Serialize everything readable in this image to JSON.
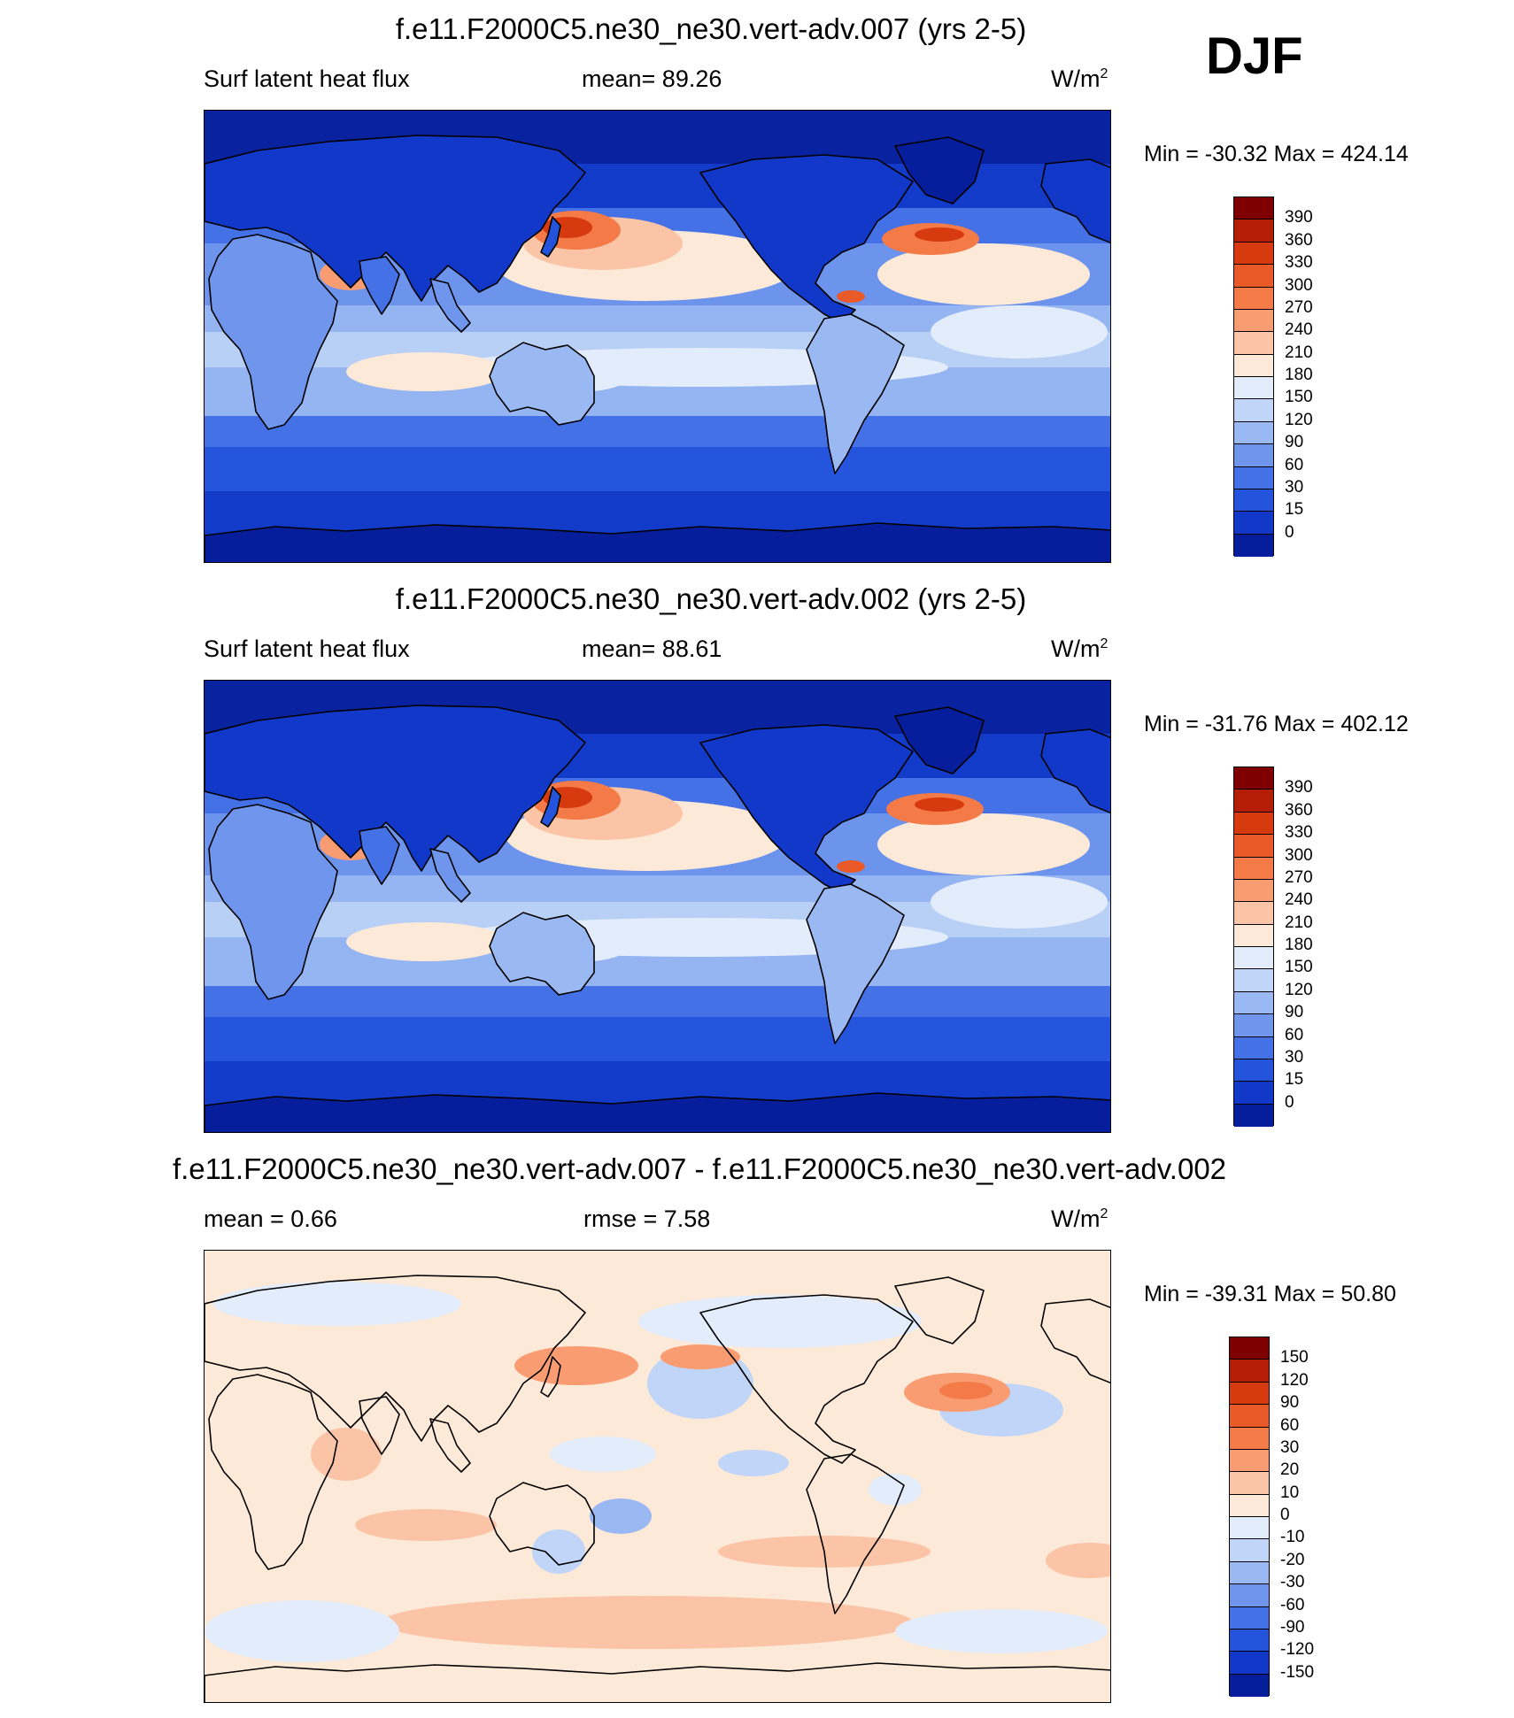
{
  "season": "DJF",
  "panels": [
    {
      "title": "f.e11.F2000C5.ne30_ne30.vert-adv.007 (yrs 2-5)",
      "left_label": "Surf latent heat flux",
      "center_label": "mean=  89.26",
      "units": "W/m",
      "units_sup": "2",
      "minmax": "Min = -30.32 Max = 424.14",
      "kind": "flux"
    },
    {
      "title": "f.e11.F2000C5.ne30_ne30.vert-adv.002 (yrs 2-5)",
      "left_label": "Surf latent heat flux",
      "center_label": "mean=  88.61",
      "units": "W/m",
      "units_sup": "2",
      "minmax": "Min = -31.76 Max = 402.12",
      "kind": "flux"
    },
    {
      "title": "f.e11.F2000C5.ne30_ne30.vert-adv.007 - f.e11.F2000C5.ne30_ne30.vert-adv.002",
      "left_label": "mean =   0.66",
      "center_label": "rmse =   7.58",
      "units": "W/m",
      "units_sup": "2",
      "minmax": "Min = -39.31 Max =  50.80",
      "kind": "diff"
    }
  ],
  "colorbars": {
    "flux": {
      "labels": [
        "390",
        "360",
        "330",
        "300",
        "270",
        "240",
        "210",
        "180",
        "150",
        "120",
        "90",
        "60",
        "30",
        "15",
        "0"
      ],
      "colors": [
        "#7f0000",
        "#b51d06",
        "#d83a10",
        "#ea5a28",
        "#f47a48",
        "#fa9c72",
        "#fcc4a6",
        "#fde9d8",
        "#e2ecfb",
        "#c0d5f7",
        "#9ab8f2",
        "#6f96ec",
        "#4471e6",
        "#2453dc",
        "#1138c8",
        "#061e9c"
      ]
    },
    "diff": {
      "labels": [
        "150",
        "120",
        "90",
        "60",
        "30",
        "20",
        "10",
        "0",
        "-10",
        "-20",
        "-30",
        "-60",
        "-90",
        "-120",
        "-150"
      ],
      "colors": [
        "#7f0000",
        "#b51d06",
        "#d83a10",
        "#ea5a28",
        "#f47a48",
        "#fa9c72",
        "#fcc4a6",
        "#fde9d8",
        "#e2ecfb",
        "#c0d5f7",
        "#9ab8f2",
        "#6f96ec",
        "#4471e6",
        "#2453dc",
        "#1138c8",
        "#061e9c"
      ]
    }
  },
  "chart_data": [
    {
      "type": "heatmap",
      "title": "f.e11.F2000C5.ne30_ne30.vert-adv.007 (yrs 2-5)",
      "variable": "Surf latent heat flux",
      "units": "W/m2",
      "mean": 89.26,
      "min": -30.32,
      "max": 424.14,
      "contour_levels": [
        0,
        15,
        30,
        60,
        90,
        120,
        150,
        180,
        210,
        240,
        270,
        300,
        330,
        360,
        390
      ]
    },
    {
      "type": "heatmap",
      "title": "f.e11.F2000C5.ne30_ne30.vert-adv.002 (yrs 2-5)",
      "variable": "Surf latent heat flux",
      "units": "W/m2",
      "mean": 88.61,
      "min": -31.76,
      "max": 402.12,
      "contour_levels": [
        0,
        15,
        30,
        60,
        90,
        120,
        150,
        180,
        210,
        240,
        270,
        300,
        330,
        360,
        390
      ]
    },
    {
      "type": "heatmap",
      "title": "f.e11.F2000C5.ne30_ne30.vert-adv.007 - f.e11.F2000C5.ne30_ne30.vert-adv.002",
      "units": "W/m2",
      "mean": 0.66,
      "rmse": 7.58,
      "min": -39.31,
      "max": 50.8,
      "contour_levels": [
        -150,
        -120,
        -90,
        -60,
        -30,
        -20,
        -10,
        0,
        10,
        20,
        30,
        60,
        90,
        120,
        150
      ]
    }
  ]
}
